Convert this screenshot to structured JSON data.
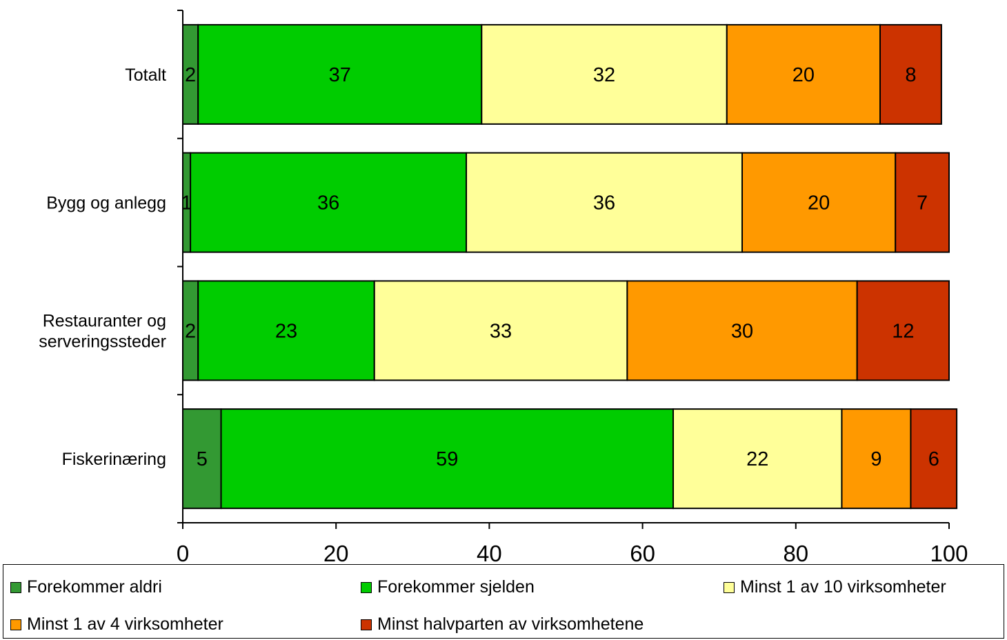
{
  "chart_data": {
    "type": "bar",
    "orientation": "horizontal",
    "stacked": true,
    "categories": [
      "Totalt",
      "Bygg og anlegg",
      "Restauranter og serveringssteder",
      "Fiskerinæring"
    ],
    "category_lines": [
      [
        "Totalt"
      ],
      [
        "Bygg og anlegg"
      ],
      [
        "Restauranter og",
        "serveringssteder"
      ],
      [
        "Fiskerinæring"
      ]
    ],
    "series": [
      {
        "name": "Forekommer aldri",
        "color": "#339933",
        "values": [
          2,
          1,
          2,
          5
        ]
      },
      {
        "name": "Forekommer sjelden",
        "color": "#00cc00",
        "values": [
          37,
          36,
          23,
          59
        ]
      },
      {
        "name": "Minst 1 av 10 virksomheter",
        "color": "#ffff99",
        "values": [
          32,
          36,
          33,
          22
        ]
      },
      {
        "name": "Minst 1 av 4 virksomheter",
        "color": "#ff9900",
        "values": [
          20,
          20,
          30,
          9
        ]
      },
      {
        "name": "Minst halvparten av virksomhetene",
        "color": "#cc3300",
        "values": [
          8,
          7,
          12,
          6
        ]
      }
    ],
    "xlim": [
      0,
      100
    ],
    "xticks": [
      0,
      20,
      40,
      60,
      80,
      100
    ],
    "grid": false,
    "legend_position": "bottom",
    "title": "",
    "xlabel": "",
    "ylabel": ""
  }
}
